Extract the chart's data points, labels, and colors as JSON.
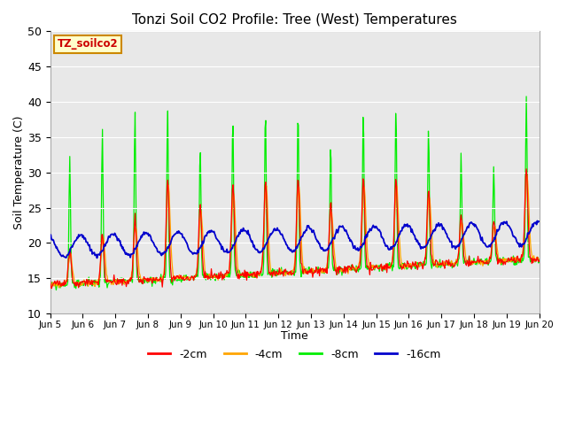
{
  "title": "Tonzi Soil CO2 Profile: Tree (West) Temperatures",
  "xlabel": "Time",
  "ylabel": "Soil Temperature (C)",
  "ylim": [
    10,
    50
  ],
  "series": {
    "2cm": {
      "color": "#ff0000",
      "label": "-2cm"
    },
    "4cm": {
      "color": "#ffa500",
      "label": "-4cm"
    },
    "8cm": {
      "color": "#00ee00",
      "label": "-8cm"
    },
    "16cm": {
      "color": "#0000cc",
      "label": "-16cm"
    }
  },
  "tick_labels": [
    "Jun 5",
    "Jun 6",
    "Jun 7",
    "Jun 8",
    "Jun 9",
    "Jun 10",
    "Jun 11",
    "Jun 12",
    "Jun 13",
    "Jun 14",
    "Jun 15",
    "Jun 16",
    "Jun 17",
    "Jun 18",
    "Jun 19",
    "Jun 20"
  ],
  "yticks": [
    10,
    15,
    20,
    25,
    30,
    35,
    40,
    45,
    50
  ],
  "legend_label": "TZ_soilco2",
  "legend_text_color": "#cc0000",
  "legend_box_facecolor": "#ffffcc",
  "legend_box_edgecolor": "#cc8800",
  "fig_facecolor": "#ffffff",
  "plot_facecolor": "#e8e8e8",
  "grid_color": "#ffffff"
}
